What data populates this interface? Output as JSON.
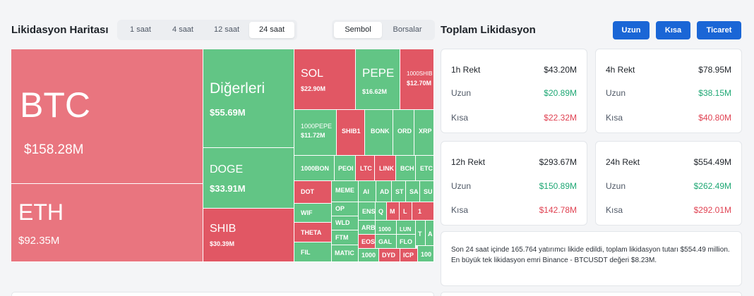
{
  "heatmap": {
    "title": "Likidasyon Haritası",
    "time_options": [
      "1 saat",
      "4 saat",
      "12 saat",
      "24 saat"
    ],
    "time_selected": "24 saat",
    "view_options": [
      "Sembol",
      "Borsalar"
    ],
    "view_selected": "Sembol",
    "tiles": {
      "btc": {
        "name": "BTC",
        "value": "$158.28M"
      },
      "eth": {
        "name": "ETH",
        "value": "$92.35M"
      },
      "others": {
        "name": "Diğerleri",
        "value": "$55.69M"
      },
      "doge": {
        "name": "DOGE",
        "value": "$33.91M"
      },
      "shib": {
        "name": "SHIB",
        "value": "$30.39M"
      },
      "sol": {
        "name": "SOL",
        "value": "$22.90M"
      },
      "pepe": {
        "name": "PEPE",
        "value": "$16.62M"
      },
      "shib1000": {
        "name": "1000SHIB",
        "value": "$12.70M"
      },
      "pepe1000": {
        "name": "1000PEPE",
        "value": "$11.72M"
      },
      "shib1b": {
        "name": "SHIB1",
        "value": ""
      },
      "bonk": {
        "name": "BONK",
        "value": ""
      },
      "ord": {
        "name": "ORD",
        "value": ""
      },
      "xrp": {
        "name": "XRP",
        "value": ""
      },
      "bon1000": {
        "name": "1000BON",
        "value": ""
      },
      "peo": {
        "name": "PEOI",
        "value": ""
      },
      "ltc": {
        "name": "LTC",
        "value": ""
      },
      "link": {
        "name": "LINK",
        "value": ""
      },
      "bch": {
        "name": "BCH",
        "value": ""
      },
      "etc": {
        "name": "ETC",
        "value": ""
      },
      "dot": {
        "name": "DOT",
        "value": ""
      },
      "meme": {
        "name": "MEME",
        "value": ""
      },
      "ai": {
        "name": "AI",
        "value": ""
      },
      "ad": {
        "name": "AD",
        "value": ""
      },
      "st": {
        "name": "ST",
        "value": ""
      },
      "sa": {
        "name": "SA",
        "value": ""
      },
      "su": {
        "name": "SU",
        "value": ""
      },
      "wif": {
        "name": "WIF",
        "value": ""
      },
      "op": {
        "name": "OP",
        "value": ""
      },
      "wld": {
        "name": "WLD",
        "value": ""
      },
      "ens": {
        "name": "ENS",
        "value": ""
      },
      "q": {
        "name": "Q",
        "value": ""
      },
      "m": {
        "name": "M",
        "value": ""
      },
      "l": {
        "name": "L",
        "value": ""
      },
      "one": {
        "name": "1",
        "value": ""
      },
      "arb": {
        "name": "ARB",
        "value": ""
      },
      "theta": {
        "name": "THETA",
        "value": ""
      },
      "ftm": {
        "name": "FTM",
        "value": ""
      },
      "x1000a": {
        "name": "1000",
        "value": ""
      },
      "lun": {
        "name": "LUN",
        "value": ""
      },
      "t": {
        "name": "T",
        "value": ""
      },
      "a": {
        "name": "A",
        "value": ""
      },
      "eos": {
        "name": "EOS",
        "value": ""
      },
      "gal": {
        "name": "GAL",
        "value": ""
      },
      "flo": {
        "name": "FLO",
        "value": ""
      },
      "fil": {
        "name": "FIL",
        "value": ""
      },
      "matic": {
        "name": "MATIC",
        "value": ""
      },
      "x1000b": {
        "name": "1000",
        "value": ""
      },
      "dyd": {
        "name": "DYD",
        "value": ""
      },
      "icp": {
        "name": "ICP",
        "value": ""
      },
      "x100": {
        "name": "100",
        "value": ""
      }
    }
  },
  "total": {
    "title": "Toplam Likidasyon",
    "buttons": {
      "long": "Uzun",
      "short": "Kısa",
      "trade": "Ticaret"
    },
    "cards": [
      {
        "period": "1h Rekt",
        "total": "$43.20M",
        "long_label": "Uzun",
        "long": "$20.89M",
        "short_label": "Kısa",
        "short": "$22.32M"
      },
      {
        "period": "4h Rekt",
        "total": "$78.95M",
        "long_label": "Uzun",
        "long": "$38.15M",
        "short_label": "Kısa",
        "short": "$40.80M"
      },
      {
        "period": "12h Rekt",
        "total": "$293.67M",
        "long_label": "Uzun",
        "long": "$150.89M",
        "short_label": "Kısa",
        "short": "$142.78M"
      },
      {
        "period": "24h Rekt",
        "total": "$554.49M",
        "long_label": "Uzun",
        "long": "$262.49M",
        "short_label": "Kısa",
        "short": "$292.01M"
      }
    ],
    "summary_line1": "Son 24 saat içinde 165.764 yatırımcı likide edildi, toplam likidasyon tutarı $554.49 million.",
    "summary_line2": "En büyük tek likidasyon emri Binance - BTCUSDT değeri $8.23M."
  },
  "colors": {
    "long": "#1ea774",
    "short": "#e04252",
    "accent": "#1a66d6",
    "tile_red": "#e15764",
    "tile_pink": "#e9757f",
    "tile_green": "#62c585"
  }
}
